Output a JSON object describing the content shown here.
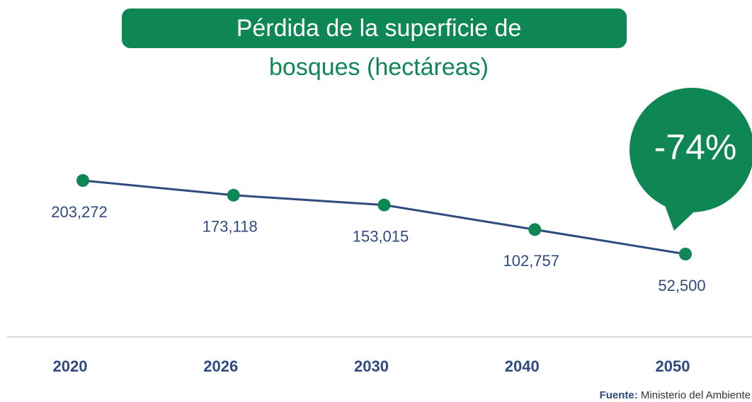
{
  "chart_data": {
    "type": "line",
    "title": [
      "Pérdida de la superficie de",
      "bosques (hectáreas)"
    ],
    "categories": [
      "2020",
      "2026",
      "2030",
      "2040",
      "2050"
    ],
    "values": [
      203272,
      173118,
      153015,
      102757,
      52500
    ],
    "value_labels": [
      "203,272",
      "173,118",
      "153,015",
      "102,757",
      "52,500"
    ],
    "line_color": "#2e4a7f",
    "marker_color": "#0e8754",
    "annotation": "-74%",
    "source": {
      "label": "Fuente:",
      "text": "Ministerio del Ambiente"
    }
  }
}
